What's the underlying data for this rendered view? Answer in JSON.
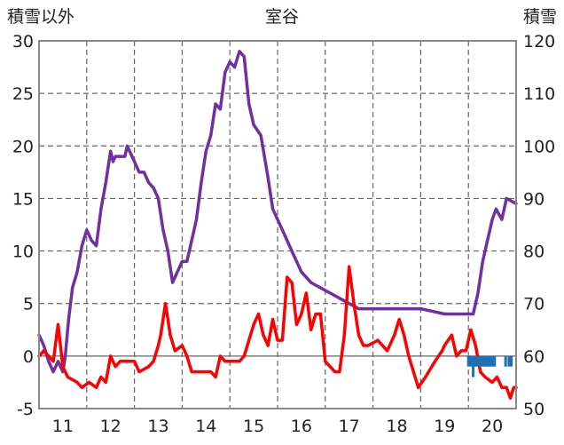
{
  "chart_data": {
    "type": "line",
    "title": "室谷",
    "ylabel_left": "積雪以外",
    "ylabel_right": "積雪",
    "x_ticks": [
      "11",
      "12",
      "13",
      "14",
      "15",
      "16",
      "17",
      "18",
      "19",
      "20"
    ],
    "xlim": [
      10.5,
      20.5
    ],
    "ylim_left": [
      -5,
      30
    ],
    "ylim_right": [
      50,
      120
    ],
    "y_ticks_left": [
      "30",
      "25",
      "20",
      "15",
      "10",
      "5",
      "0",
      "-5"
    ],
    "y_ticks_right": [
      "120",
      "110",
      "100",
      "90",
      "80",
      "70",
      "60",
      "50"
    ],
    "grid": "dashed vertical and horizontal",
    "colors": {
      "purple": "#7030a0",
      "red": "#ff0000",
      "blue": "#1f6fb4"
    },
    "series": [
      {
        "axis": "left",
        "color": "#7030a0",
        "points": [
          [
            10.5,
            2
          ],
          [
            10.6,
            1
          ],
          [
            10.7,
            -0.5
          ],
          [
            10.8,
            -1.5
          ],
          [
            10.9,
            -0.5
          ],
          [
            11.0,
            -1.5
          ],
          [
            11.05,
            0
          ],
          [
            11.12,
            3.5
          ],
          [
            11.2,
            6.5
          ],
          [
            11.3,
            8
          ],
          [
            11.4,
            10.5
          ],
          [
            11.5,
            12
          ],
          [
            11.6,
            11
          ],
          [
            11.7,
            10.5
          ],
          [
            11.8,
            14
          ],
          [
            11.9,
            16.5
          ],
          [
            12.0,
            19.5
          ],
          [
            12.05,
            18.5
          ],
          [
            12.1,
            19
          ],
          [
            12.3,
            19
          ],
          [
            12.35,
            20
          ],
          [
            12.45,
            19
          ],
          [
            12.5,
            18.5
          ],
          [
            12.6,
            17.5
          ],
          [
            12.7,
            17.5
          ],
          [
            12.8,
            16.5
          ],
          [
            12.9,
            16
          ],
          [
            13.0,
            15
          ],
          [
            13.1,
            12
          ],
          [
            13.2,
            10
          ],
          [
            13.3,
            7
          ],
          [
            13.4,
            8
          ],
          [
            13.5,
            9
          ],
          [
            13.6,
            9
          ],
          [
            13.7,
            11
          ],
          [
            13.8,
            13
          ],
          [
            13.9,
            16.5
          ],
          [
            14.0,
            19.5
          ],
          [
            14.1,
            21
          ],
          [
            14.2,
            24
          ],
          [
            14.3,
            23.5
          ],
          [
            14.4,
            27
          ],
          [
            14.5,
            28
          ],
          [
            14.6,
            27.5
          ],
          [
            14.7,
            29
          ],
          [
            14.8,
            28.5
          ],
          [
            14.9,
            24
          ],
          [
            15.0,
            22
          ],
          [
            15.15,
            21
          ],
          [
            15.3,
            17
          ],
          [
            15.4,
            14
          ],
          [
            15.6,
            12
          ],
          [
            15.8,
            10
          ],
          [
            16.0,
            8
          ],
          [
            16.2,
            7
          ],
          [
            16.4,
            6.5
          ],
          [
            16.6,
            6
          ],
          [
            16.8,
            5.5
          ],
          [
            17.0,
            5
          ],
          [
            17.2,
            4.5
          ],
          [
            17.5,
            4.5
          ],
          [
            18.0,
            4.5
          ],
          [
            18.5,
            4.5
          ],
          [
            19.0,
            4
          ],
          [
            19.5,
            4
          ],
          [
            19.6,
            4
          ],
          [
            19.7,
            6
          ],
          [
            19.8,
            9
          ],
          [
            19.9,
            11
          ],
          [
            20.0,
            13
          ],
          [
            20.08,
            14
          ],
          [
            20.2,
            13
          ],
          [
            20.3,
            15
          ],
          [
            20.5,
            14.5
          ]
        ]
      },
      {
        "axis": "left",
        "color": "#ff0000",
        "points": [
          [
            10.5,
            0
          ],
          [
            10.6,
            0.5
          ],
          [
            10.7,
            0
          ],
          [
            10.8,
            -0.5
          ],
          [
            10.9,
            3
          ],
          [
            11.0,
            -1
          ],
          [
            11.1,
            -2
          ],
          [
            11.3,
            -2.5
          ],
          [
            11.4,
            -3
          ],
          [
            11.55,
            -2.5
          ],
          [
            11.7,
            -3
          ],
          [
            11.8,
            -2
          ],
          [
            11.9,
            -2.5
          ],
          [
            12.0,
            0
          ],
          [
            12.1,
            -1
          ],
          [
            12.2,
            -0.5
          ],
          [
            12.35,
            -0.5
          ],
          [
            12.5,
            -0.5
          ],
          [
            12.6,
            -1.5
          ],
          [
            12.8,
            -1
          ],
          [
            12.9,
            -0.5
          ],
          [
            13.0,
            1
          ],
          [
            13.05,
            2
          ],
          [
            13.15,
            5
          ],
          [
            13.25,
            2
          ],
          [
            13.35,
            0.5
          ],
          [
            13.5,
            1
          ],
          [
            13.6,
            0
          ],
          [
            13.7,
            -1.5
          ],
          [
            13.9,
            -1.5
          ],
          [
            14.1,
            -1.5
          ],
          [
            14.2,
            -2
          ],
          [
            14.3,
            0
          ],
          [
            14.4,
            -0.5
          ],
          [
            14.5,
            -0.5
          ],
          [
            14.7,
            -0.5
          ],
          [
            14.8,
            0
          ],
          [
            15.0,
            3
          ],
          [
            15.1,
            4
          ],
          [
            15.2,
            2
          ],
          [
            15.3,
            1
          ],
          [
            15.4,
            3.5
          ],
          [
            15.5,
            1.5
          ],
          [
            15.6,
            1.5
          ],
          [
            15.7,
            7.5
          ],
          [
            15.8,
            7
          ],
          [
            15.9,
            3
          ],
          [
            16.0,
            4
          ],
          [
            16.1,
            6
          ],
          [
            16.2,
            2.5
          ],
          [
            16.3,
            4
          ],
          [
            16.4,
            4
          ],
          [
            16.5,
            -0.5
          ],
          [
            16.6,
            -1
          ],
          [
            16.7,
            -1.5
          ],
          [
            16.8,
            -1.5
          ],
          [
            16.9,
            2
          ],
          [
            17.0,
            8.5
          ],
          [
            17.1,
            5
          ],
          [
            17.2,
            2
          ],
          [
            17.3,
            1
          ],
          [
            17.4,
            1
          ],
          [
            17.6,
            1.5
          ],
          [
            17.8,
            0.5
          ],
          [
            17.95,
            2
          ],
          [
            18.05,
            3.5
          ],
          [
            18.15,
            2
          ],
          [
            18.25,
            0
          ],
          [
            18.35,
            -1.5
          ],
          [
            18.45,
            -3
          ],
          [
            18.6,
            -2
          ],
          [
            18.8,
            -0.5
          ],
          [
            18.95,
            0.5
          ],
          [
            19.0,
            1
          ],
          [
            19.15,
            2
          ],
          [
            19.25,
            0
          ],
          [
            19.35,
            0.5
          ],
          [
            19.45,
            0.5
          ],
          [
            19.55,
            2.5
          ],
          [
            19.65,
            1
          ],
          [
            19.75,
            -1.5
          ],
          [
            19.85,
            -2
          ],
          [
            20.0,
            -2.5
          ],
          [
            20.1,
            -2
          ],
          [
            20.2,
            -3
          ],
          [
            20.3,
            -3
          ],
          [
            20.38,
            -4
          ],
          [
            20.45,
            -3
          ],
          [
            20.5,
            -3
          ]
        ]
      },
      {
        "axis": "left",
        "color": "#1f6fb4",
        "style": "bars",
        "bars": [
          [
            19.5,
            -1
          ],
          [
            19.55,
            -1
          ],
          [
            19.6,
            -2
          ],
          [
            19.65,
            -1
          ],
          [
            19.7,
            -1
          ],
          [
            19.75,
            -1
          ],
          [
            19.8,
            -1
          ],
          [
            19.85,
            -1
          ],
          [
            19.9,
            -1
          ],
          [
            19.95,
            -1
          ],
          [
            20.0,
            -1
          ],
          [
            20.05,
            -1
          ],
          [
            20.28,
            -1
          ],
          [
            20.35,
            -1
          ],
          [
            20.4,
            -1
          ]
        ]
      }
    ]
  }
}
